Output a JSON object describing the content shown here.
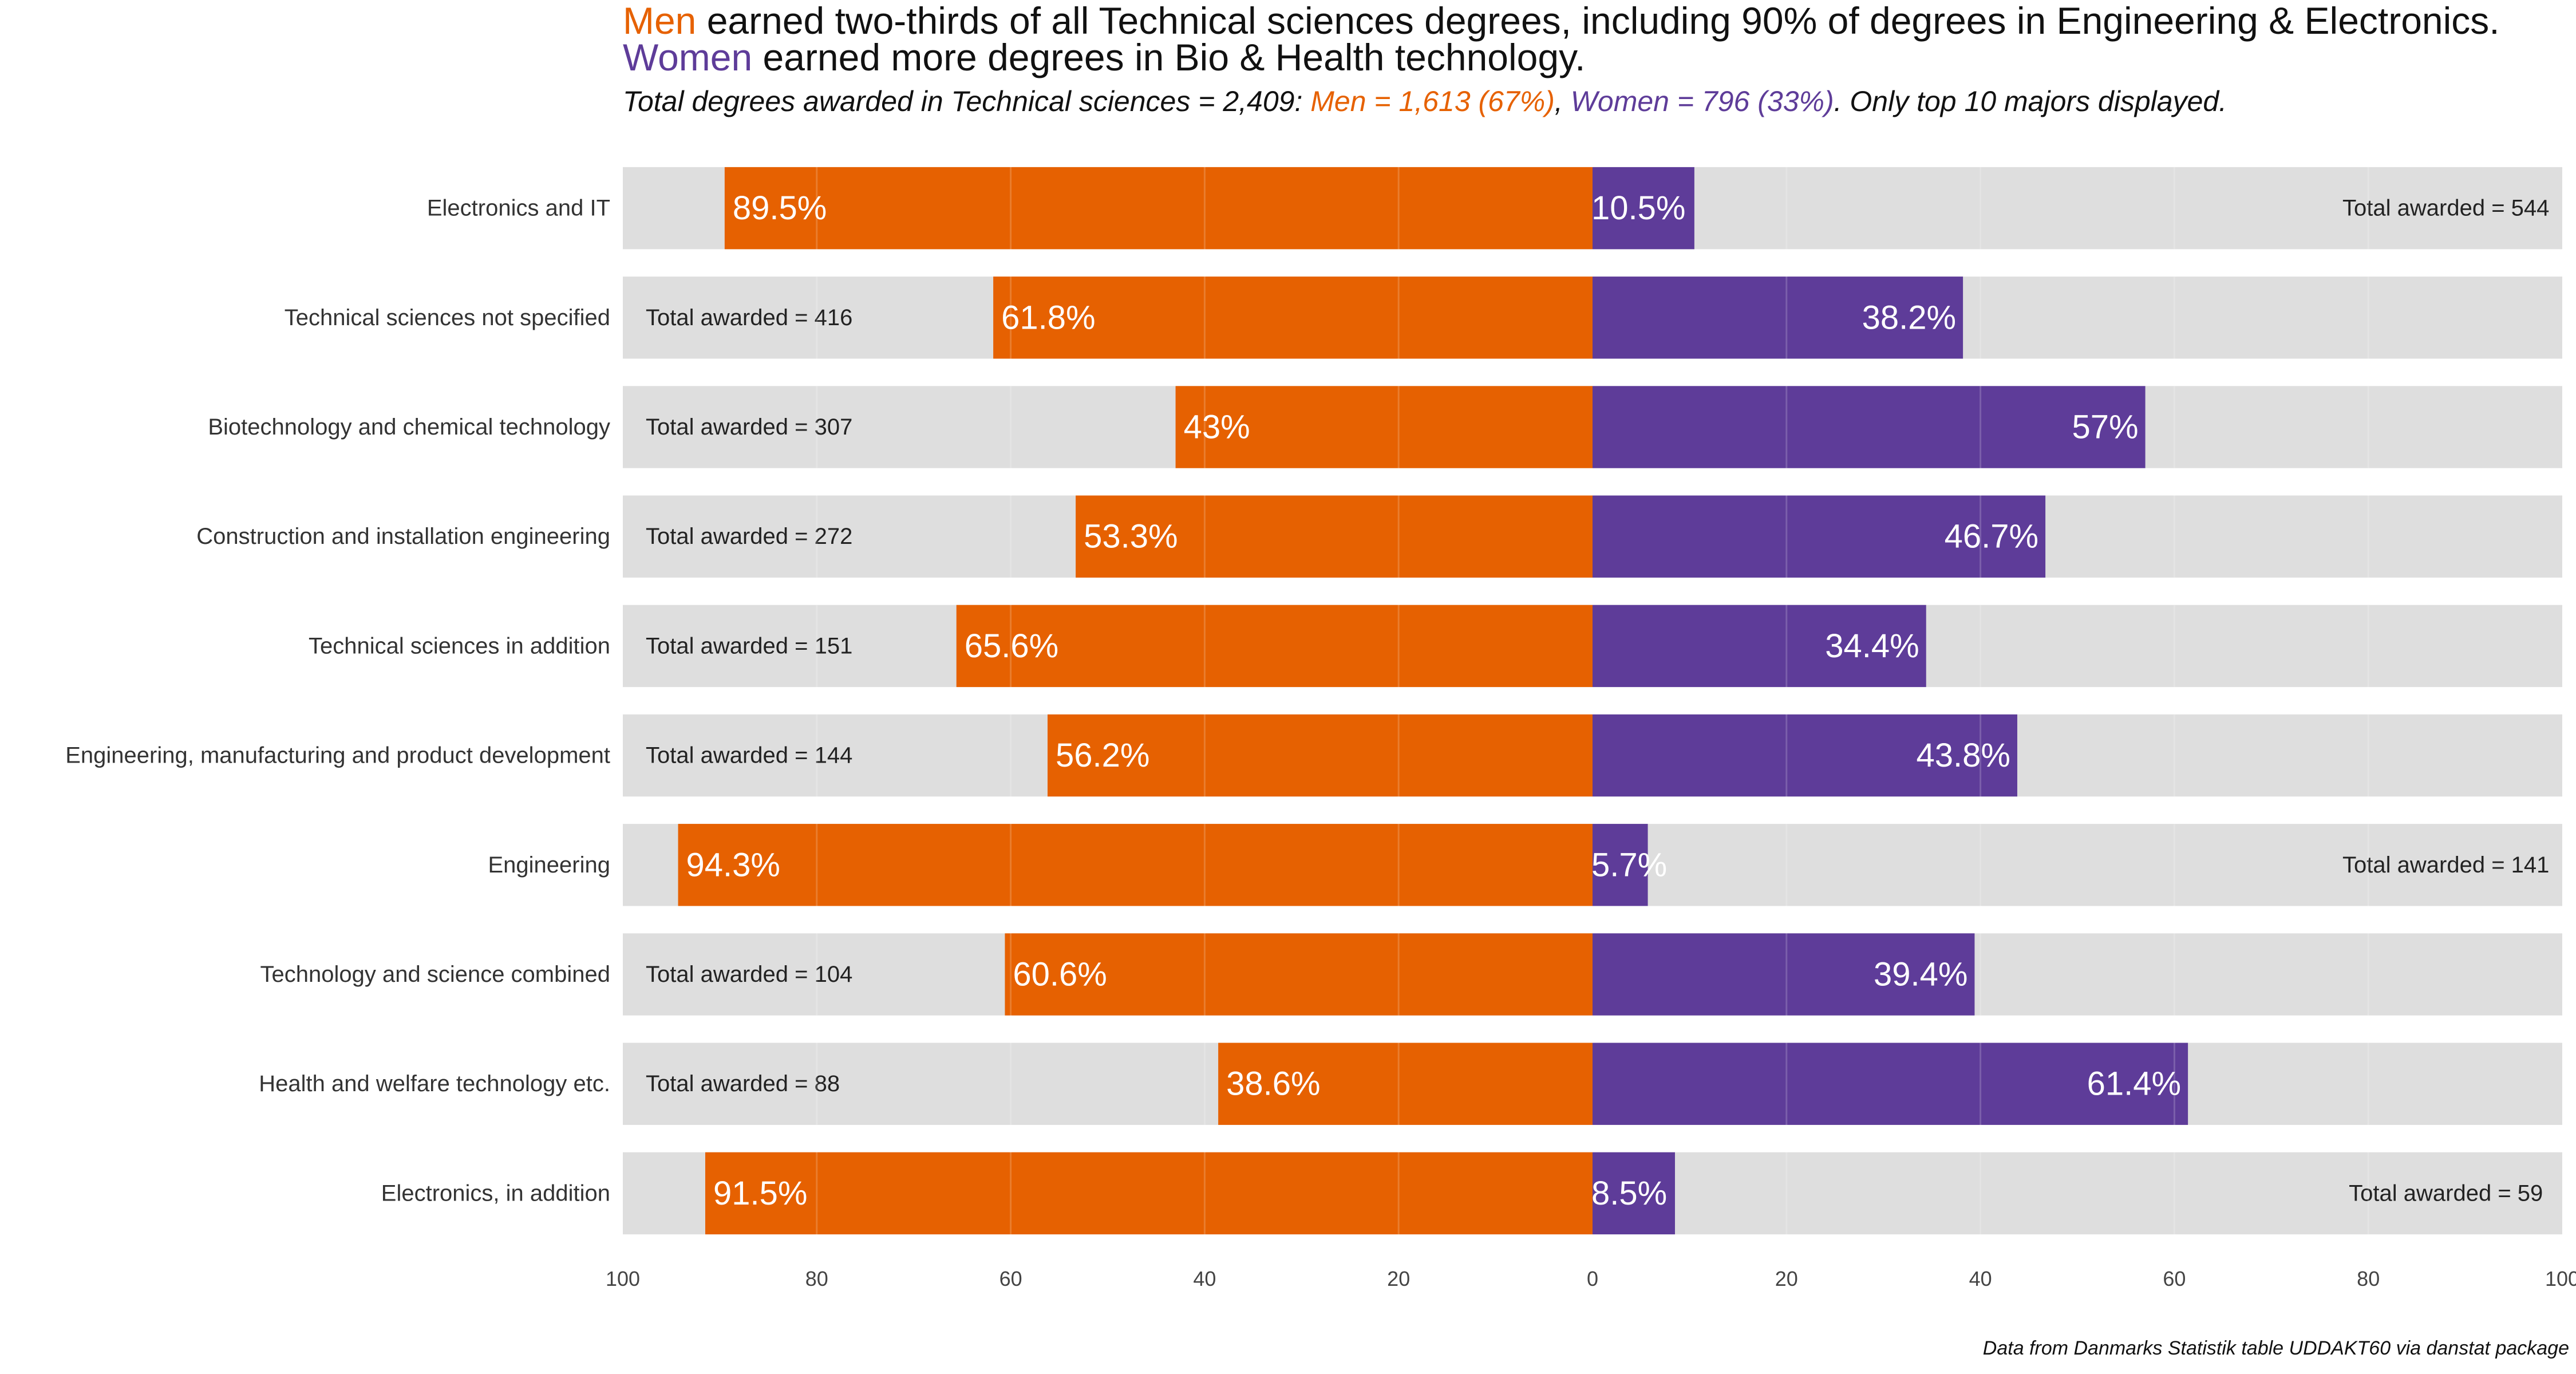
{
  "title": {
    "line1_men": "Men",
    "line1_rest": " earned two-thirds of all Technical sciences degrees, including 90% of degrees in Engineering & Electronics.",
    "line2_women": "Women",
    "line2_rest": " earned more degrees in Bio & Health technology."
  },
  "subtitle": {
    "prefix": "Total degrees awarded in Technical sciences = 2,409: ",
    "men": "Men = 1,613 (67%)",
    "sep": ", ",
    "women": "Women = 796 (33%)",
    "suffix": ". Only top 10 majors displayed."
  },
  "caption": "Data from Danmarks Statistik table UDDAKT60 via danstat package",
  "colors": {
    "men": "#e66101",
    "women": "#5e3c99",
    "background_bar": "#dedede",
    "grid": "#f2f2f2"
  },
  "chart_data": {
    "type": "bar",
    "orientation": "horizontal-diverging",
    "xlim": [
      -100,
      100
    ],
    "x_ticks": [
      100,
      80,
      60,
      40,
      20,
      0,
      20,
      40,
      60,
      80,
      100
    ],
    "categories": [
      "Electronics and IT",
      "Technical sciences not specified",
      "Biotechnology and chemical technology",
      "Construction and installation engineering",
      "Technical sciences in addition",
      "Engineering, manufacturing and product development",
      "Engineering",
      "Technology and science combined",
      "Health and welfare technology etc.",
      "Electronics, in addition"
    ],
    "series": [
      {
        "name": "Men",
        "values": [
          89.5,
          61.8,
          43,
          53.3,
          65.6,
          56.2,
          94.3,
          60.6,
          38.6,
          91.5
        ],
        "labels": [
          "89.5%",
          "61.8%",
          "43%",
          "53.3%",
          "65.6%",
          "56.2%",
          "94.3%",
          "60.6%",
          "38.6%",
          "91.5%"
        ]
      },
      {
        "name": "Women",
        "values": [
          10.5,
          38.2,
          57,
          46.7,
          34.4,
          43.8,
          5.7,
          39.4,
          61.4,
          8.5
        ],
        "labels": [
          "10.5%",
          "38.2%",
          "57%",
          "46.7%",
          "34.4%",
          "43.8%",
          "5.7%",
          "39.4%",
          "61.4%",
          "8.5%"
        ]
      }
    ],
    "totals": [
      544,
      416,
      307,
      272,
      151,
      144,
      141,
      104,
      88,
      59
    ],
    "total_labels": [
      "Total awarded = 544",
      "Total awarded = 416",
      "Total awarded = 307",
      "Total awarded = 272",
      "Total awarded = 151",
      "Total awarded = 144",
      "Total awarded = 141",
      "Total awarded = 104",
      "Total awarded = 88",
      "Total awarded = 59"
    ],
    "total_label_side": [
      "right",
      "left",
      "left",
      "left",
      "left",
      "left",
      "right",
      "left",
      "left",
      "right"
    ],
    "grid": true,
    "legend": "none"
  }
}
